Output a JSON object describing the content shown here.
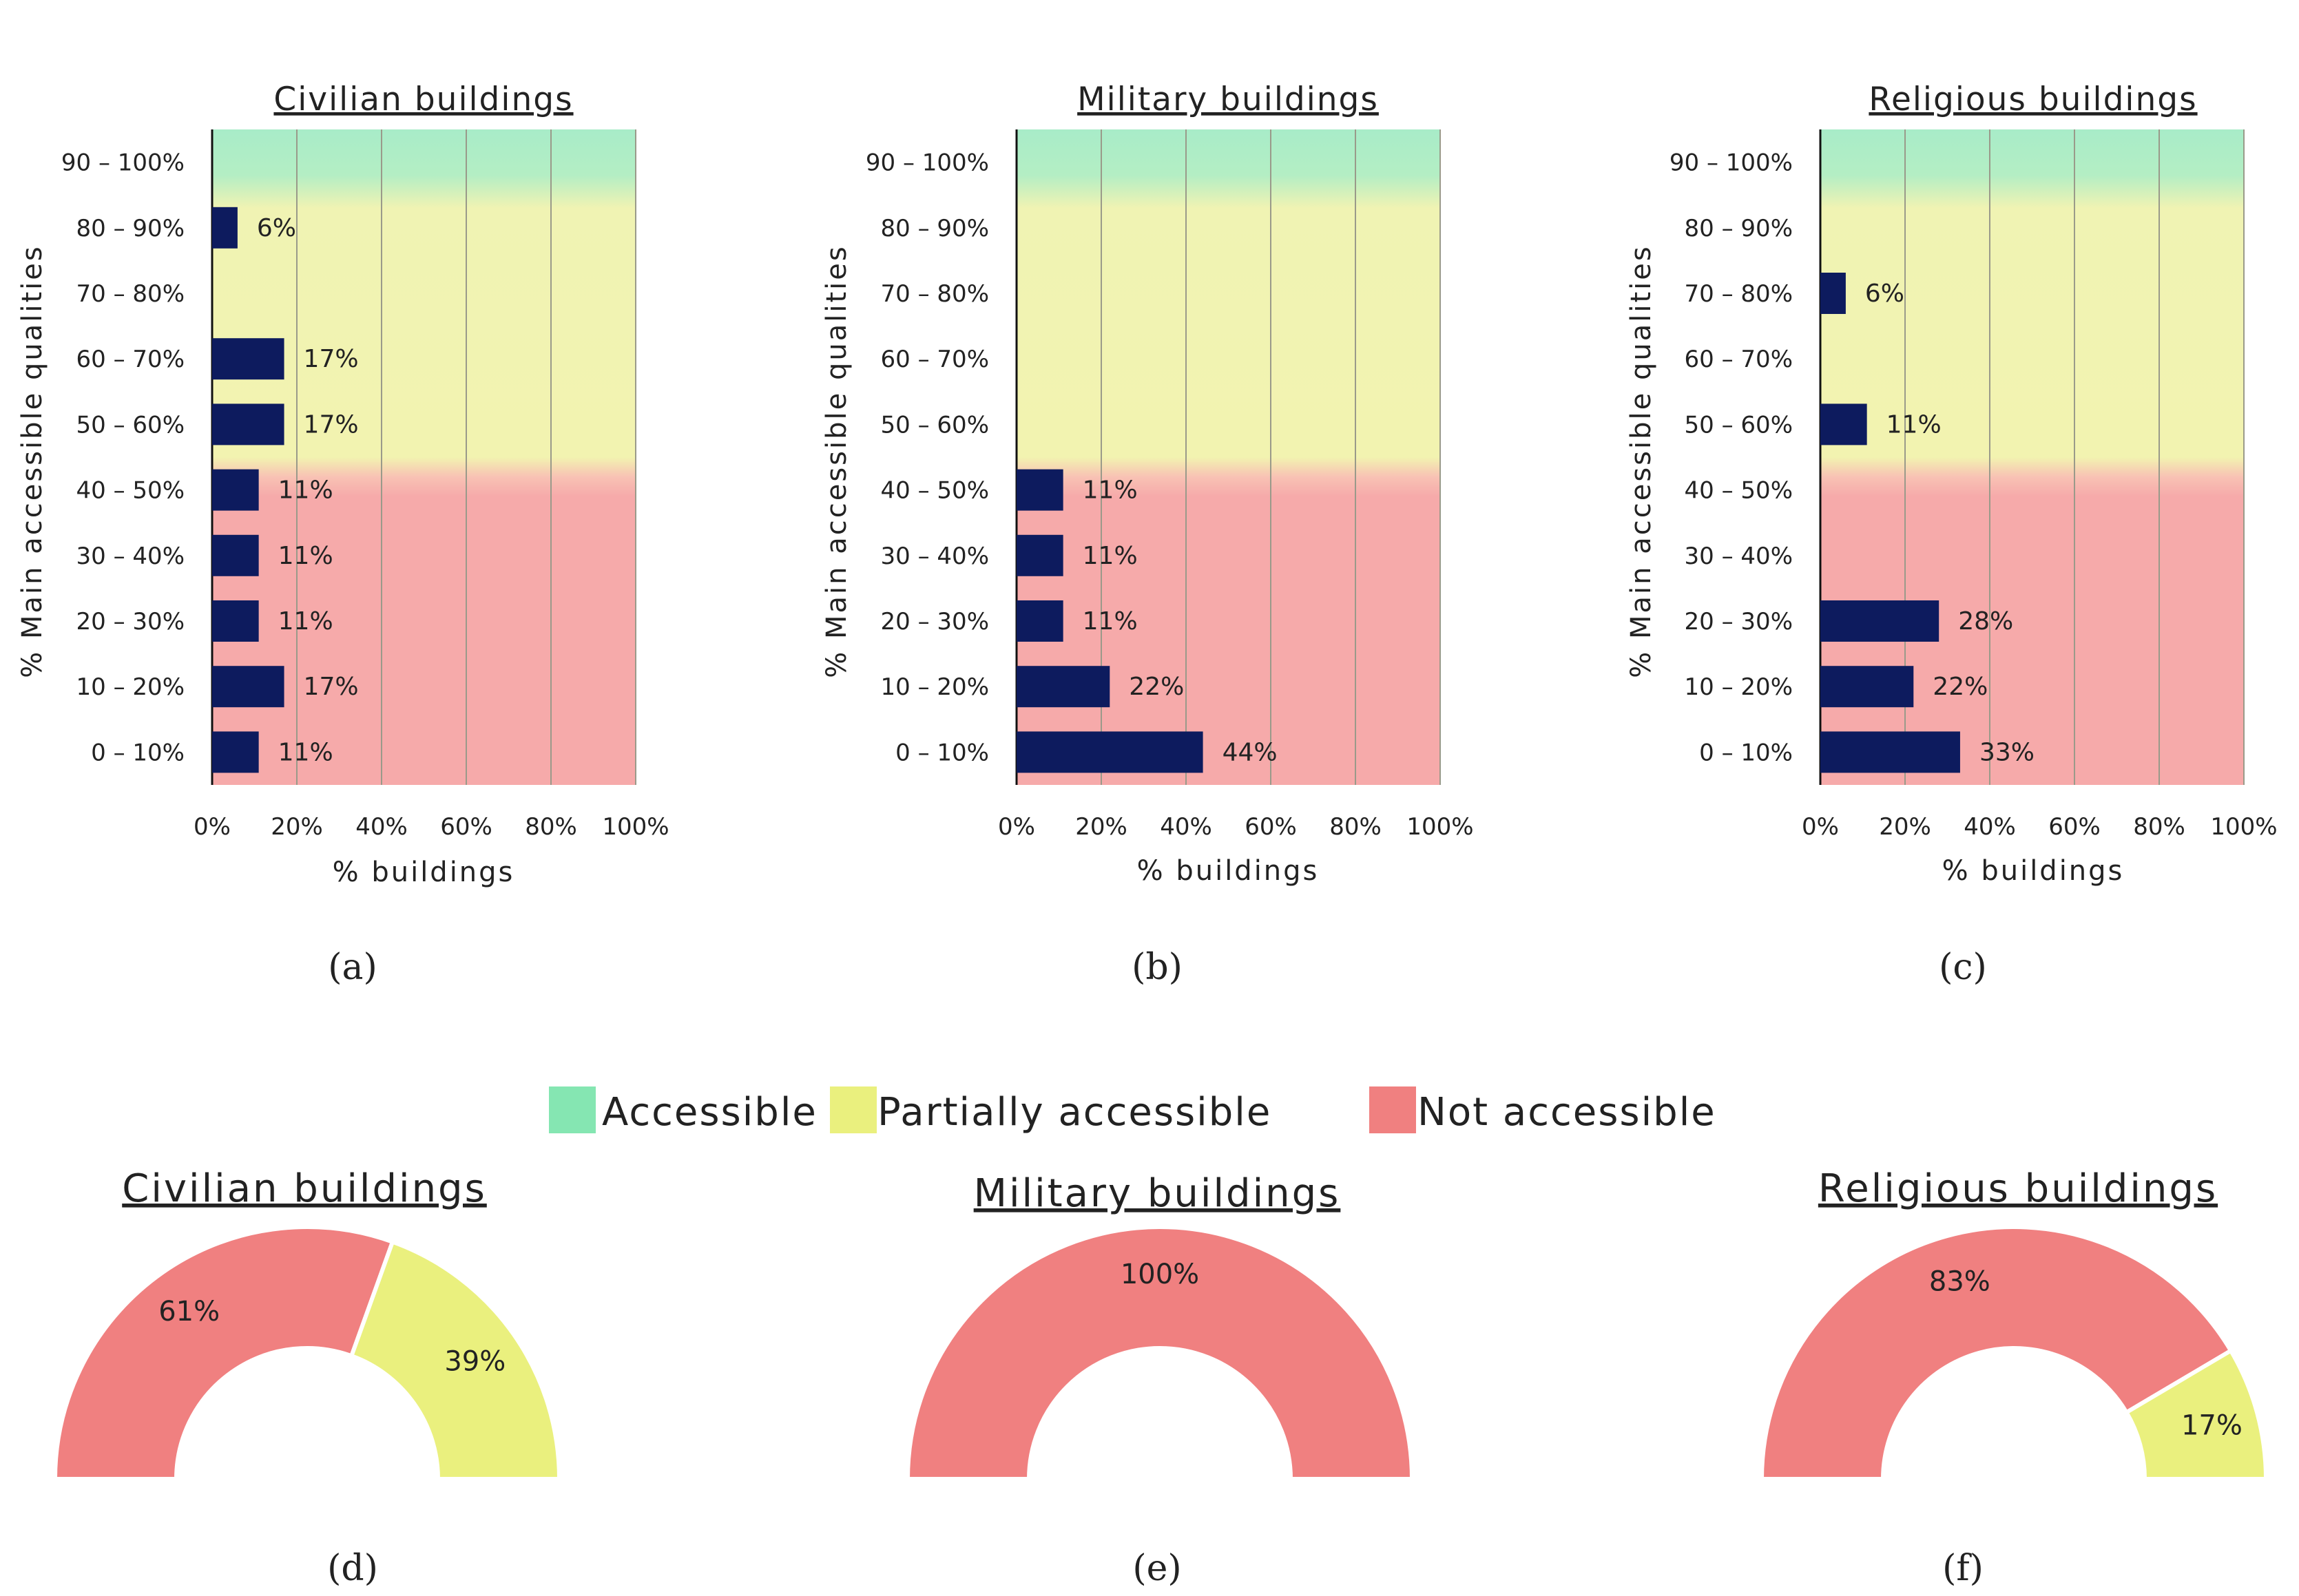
{
  "colors": {
    "bar": "#0d1b5e",
    "accessible": "#85e6b2",
    "partially_accessible": "#eaf07e",
    "not_accessible": "#f08080",
    "band_green": "#a8ecc8",
    "band_yellow": "#f2f3b0",
    "band_red": "#f6aaaa"
  },
  "legend": [
    {
      "name": "Accessible",
      "color": "#85e6b2"
    },
    {
      "name": "Partially accessible",
      "color": "#eaf07e"
    },
    {
      "name": "Not accessible",
      "color": "#f08080"
    }
  ],
  "chart_data": [
    {
      "panel": "(a)",
      "type": "bar",
      "orientation": "horizontal",
      "title": "Civilian buildings",
      "xlabel": "% buildings",
      "ylabel": "% Main accessible qualities",
      "xlim": [
        0,
        100
      ],
      "xticks": [
        "0%",
        "20%",
        "40%",
        "60%",
        "80%",
        "100%"
      ],
      "categories": [
        "0 – 10%",
        "10 – 20%",
        "20 – 30%",
        "30 – 40%",
        "40 – 50%",
        "50 – 60%",
        "60 – 70%",
        "70 – 80%",
        "80 – 90%",
        "90 – 100%"
      ],
      "values": [
        11,
        17,
        11,
        11,
        11,
        17,
        17,
        0,
        6,
        0
      ],
      "labels": [
        "11%",
        "17%",
        "11%",
        "11%",
        "11%",
        "17%",
        "17%",
        "",
        "6%",
        ""
      ]
    },
    {
      "panel": "(b)",
      "type": "bar",
      "orientation": "horizontal",
      "title": "Military buildings",
      "xlabel": "% buildings",
      "ylabel": "% Main accessible qualities",
      "xlim": [
        0,
        100
      ],
      "xticks": [
        "0%",
        "20%",
        "40%",
        "60%",
        "80%",
        "100%"
      ],
      "categories": [
        "0 – 10%",
        "10 – 20%",
        "20 – 30%",
        "30 – 40%",
        "40 – 50%",
        "50 – 60%",
        "60 – 70%",
        "70 – 80%",
        "80 – 90%",
        "90 – 100%"
      ],
      "values": [
        44,
        22,
        11,
        11,
        11,
        0,
        0,
        0,
        0,
        0
      ],
      "labels": [
        "44%",
        "22%",
        "11%",
        "11%",
        "11%",
        "",
        "",
        "",
        "",
        ""
      ]
    },
    {
      "panel": "(c)",
      "type": "bar",
      "orientation": "horizontal",
      "title": "Religious buildings",
      "xlabel": "% buildings",
      "ylabel": "% Main accessible qualities",
      "xlim": [
        0,
        100
      ],
      "xticks": [
        "0%",
        "20%",
        "40%",
        "60%",
        "80%",
        "100%"
      ],
      "categories": [
        "0 – 10%",
        "10 – 20%",
        "20 – 30%",
        "30 – 40%",
        "40 – 50%",
        "50 – 60%",
        "60 – 70%",
        "70 – 80%",
        "80 – 90%",
        "90 – 100%"
      ],
      "values": [
        33,
        22,
        28,
        0,
        0,
        11,
        0,
        6,
        0,
        0
      ],
      "labels": [
        "33%",
        "22%",
        "28%",
        "",
        "",
        "11%",
        "",
        "6%",
        "",
        ""
      ]
    },
    {
      "panel": "(d)",
      "type": "pie",
      "subtype": "half-donut",
      "title": "Civilian buildings",
      "slices": [
        {
          "name": "Not accessible",
          "value": 61,
          "label": "61%",
          "color": "#f08080"
        },
        {
          "name": "Partially accessible",
          "value": 39,
          "label": "39%",
          "color": "#eaf07e"
        }
      ]
    },
    {
      "panel": "(e)",
      "type": "pie",
      "subtype": "half-donut",
      "title": "Military buildings",
      "slices": [
        {
          "name": "Not accessible",
          "value": 100,
          "label": "100%",
          "color": "#f08080"
        }
      ]
    },
    {
      "panel": "(f)",
      "type": "pie",
      "subtype": "half-donut",
      "title": "Religious buildings",
      "slices": [
        {
          "name": "Not accessible",
          "value": 83,
          "label": "83%",
          "color": "#f08080"
        },
        {
          "name": "Partially accessible",
          "value": 17,
          "label": "17%",
          "color": "#eaf07e"
        }
      ]
    }
  ]
}
